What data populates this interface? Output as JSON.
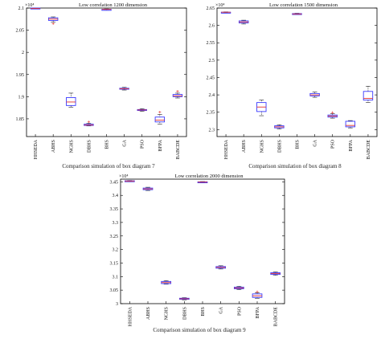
{
  "chart_data": [
    {
      "type": "box",
      "title": "Low correlation 1200 dimension",
      "exponent_label": "×10⁴",
      "caption": "Comparison simulation of box diagram 7",
      "ylim": [
        1.81,
        2.1
      ],
      "yticks": [
        "1.85",
        "1.9",
        "1.95",
        "2",
        "2.05",
        "2.1"
      ],
      "categories": [
        "HHSEDA",
        "ABHS",
        "NGHS",
        "DBHS",
        "BHS",
        "GA",
        "PSO",
        "BFPA",
        "BABCDE"
      ],
      "boxes": [
        {
          "min": 2.098,
          "q1": 2.099,
          "median": 2.099,
          "q3": 2.1,
          "max": 2.1,
          "outliers": []
        },
        {
          "min": 2.068,
          "q1": 2.072,
          "median": 2.075,
          "q3": 2.078,
          "max": 2.08,
          "outliers": [
            2.065
          ]
        },
        {
          "min": 1.876,
          "q1": 1.88,
          "median": 1.888,
          "q3": 1.898,
          "max": 1.908,
          "outliers": []
        },
        {
          "min": 1.834,
          "q1": 1.835,
          "median": 1.836,
          "q3": 1.838,
          "max": 1.84,
          "outliers": [
            1.843
          ]
        },
        {
          "min": 2.095,
          "q1": 2.096,
          "median": 2.097,
          "q3": 2.097,
          "max": 2.098,
          "outliers": []
        },
        {
          "min": 1.915,
          "q1": 1.917,
          "median": 1.918,
          "q3": 1.919,
          "max": 1.921,
          "outliers": []
        },
        {
          "min": 1.867,
          "q1": 1.869,
          "median": 1.87,
          "q3": 1.871,
          "max": 1.873,
          "outliers": []
        },
        {
          "min": 1.838,
          "q1": 1.843,
          "median": 1.847,
          "q3": 1.854,
          "max": 1.86,
          "outliers": [
            1.865
          ]
        },
        {
          "min": 1.897,
          "q1": 1.9,
          "median": 1.902,
          "q3": 1.905,
          "max": 1.908,
          "outliers": [
            1.912
          ]
        }
      ]
    },
    {
      "type": "box",
      "title": "Low correlation 1500 dimension",
      "exponent_label": "×10⁴",
      "caption": "Comparison simulation of box diagram 8",
      "ylim": [
        2.28,
        2.65
      ],
      "yticks": [
        "2.3",
        "2.35",
        "2.4",
        "2.45",
        "2.5",
        "2.55",
        "2.6",
        "2.65"
      ],
      "categories": [
        "HHSEDA",
        "ABHS",
        "NGHS",
        "DBHS",
        "BHS",
        "GA",
        "PSO",
        "BFPA",
        "BABCDE"
      ],
      "boxes": [
        {
          "min": 2.636,
          "q1": 2.637,
          "median": 2.638,
          "q3": 2.638,
          "max": 2.639,
          "outliers": []
        },
        {
          "min": 2.604,
          "q1": 2.607,
          "median": 2.61,
          "q3": 2.613,
          "max": 2.615,
          "outliers": []
        },
        {
          "min": 2.34,
          "q1": 2.352,
          "median": 2.365,
          "q3": 2.378,
          "max": 2.385,
          "outliers": []
        },
        {
          "min": 2.302,
          "q1": 2.305,
          "median": 2.308,
          "q3": 2.311,
          "max": 2.314,
          "outliers": []
        },
        {
          "min": 2.631,
          "q1": 2.632,
          "median": 2.633,
          "q3": 2.634,
          "max": 2.635,
          "outliers": []
        },
        {
          "min": 2.393,
          "q1": 2.397,
          "median": 2.4,
          "q3": 2.404,
          "max": 2.408,
          "outliers": []
        },
        {
          "min": 2.333,
          "q1": 2.336,
          "median": 2.339,
          "q3": 2.342,
          "max": 2.346,
          "outliers": [
            2.349
          ]
        },
        {
          "min": 2.305,
          "q1": 2.308,
          "median": 2.312,
          "q3": 2.324,
          "max": 2.326,
          "outliers": []
        },
        {
          "min": 2.378,
          "q1": 2.385,
          "median": 2.39,
          "q3": 2.41,
          "max": 2.425,
          "outliers": []
        }
      ]
    },
    {
      "type": "box",
      "title": "Low correlation 2000 dimension",
      "exponent_label": "×10⁴",
      "caption": "Comparison simulation of box diagram 9",
      "ylim": [
        3.0,
        3.46
      ],
      "yticks": [
        "3",
        "3.05",
        "3.1",
        "3.15",
        "3.2",
        "3.25",
        "3.3",
        "3.35",
        "3.4",
        "3.45"
      ],
      "categories": [
        "HHSEDA",
        "ABHS",
        "NGHS",
        "DBHS",
        "BHS",
        "GA",
        "PSO",
        "BFPA",
        "BABCDE"
      ],
      "boxes": [
        {
          "min": 3.451,
          "q1": 3.452,
          "median": 3.453,
          "q3": 3.454,
          "max": 3.455,
          "outliers": []
        },
        {
          "min": 3.418,
          "q1": 3.421,
          "median": 3.424,
          "q3": 3.427,
          "max": 3.43,
          "outliers": []
        },
        {
          "min": 3.072,
          "q1": 3.074,
          "median": 3.078,
          "q3": 3.082,
          "max": 3.085,
          "outliers": []
        },
        {
          "min": 3.014,
          "q1": 3.016,
          "median": 3.018,
          "q3": 3.02,
          "max": 3.022,
          "outliers": []
        },
        {
          "min": 3.447,
          "q1": 3.448,
          "median": 3.449,
          "q3": 3.45,
          "max": 3.451,
          "outliers": []
        },
        {
          "min": 3.128,
          "q1": 3.131,
          "median": 3.134,
          "q3": 3.137,
          "max": 3.14,
          "outliers": []
        },
        {
          "min": 3.052,
          "q1": 3.055,
          "median": 3.058,
          "q3": 3.061,
          "max": 3.064,
          "outliers": []
        },
        {
          "min": 3.02,
          "q1": 3.023,
          "median": 3.029,
          "q3": 3.036,
          "max": 3.04,
          "outliers": [
            3.044
          ]
        },
        {
          "min": 3.105,
          "q1": 3.108,
          "median": 3.111,
          "q3": 3.114,
          "max": 3.117,
          "outliers": []
        }
      ]
    }
  ]
}
